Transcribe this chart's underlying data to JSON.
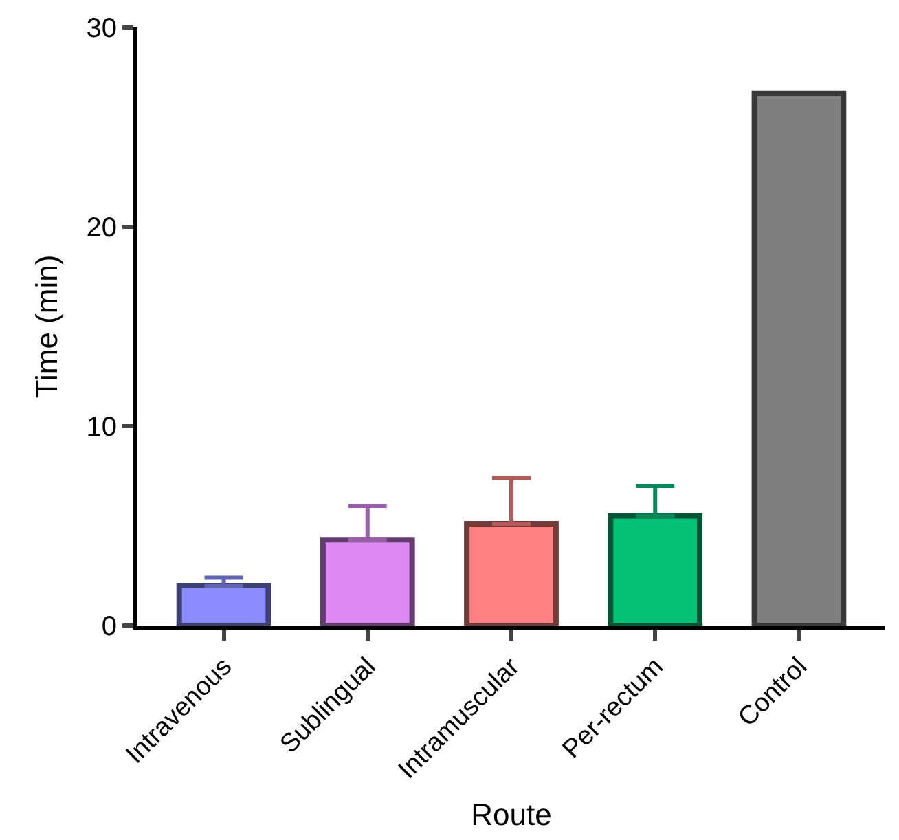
{
  "chart_data": {
    "type": "bar",
    "xlabel": "Route",
    "ylabel": "Time (min)",
    "categories": [
      "Intravenous",
      "Sublingual",
      "Intramuscular",
      "Per-rectum",
      "Control"
    ],
    "values": [
      2.0,
      4.3,
      5.1,
      5.5,
      26.7
    ],
    "errors": [
      [
        2.0,
        2.4
      ],
      [
        4.3,
        6.0
      ],
      [
        5.1,
        7.4
      ],
      [
        5.5,
        7.0
      ],
      null
    ],
    "colors": [
      "#8a8cff",
      "#dd88f5",
      "#ff8080",
      "#05c178",
      "#7f7f7f"
    ],
    "ylim": [
      0,
      30
    ],
    "yticks": [
      0,
      10,
      20,
      30
    ]
  }
}
